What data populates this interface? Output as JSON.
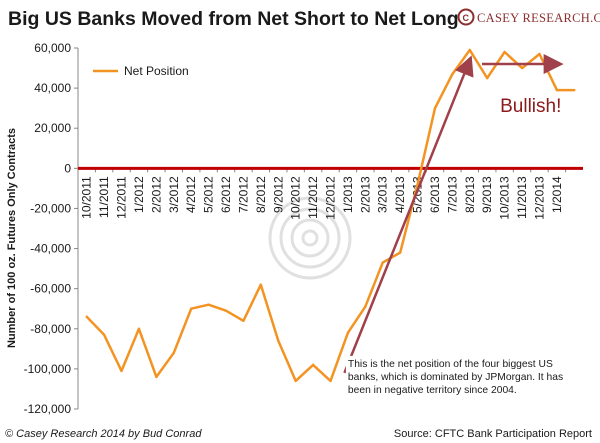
{
  "brand": {
    "name": "CASEY RESEARCH.COM",
    "logo_letter": "C"
  },
  "footer": {
    "credit": "© Casey Research 2014 by Bud Conrad",
    "source": "Source: CFTC Bank Participation Report"
  },
  "colors": {
    "series": "#F39322",
    "arrow": "#A0404A",
    "zero_line": "#C00000",
    "bullish_text": "#8B1A1A",
    "logo": "#8B2E2E"
  },
  "chart_data": {
    "type": "line",
    "title": "Big US Banks Moved from Net Short to Net Long",
    "ylabel": "Number of 100 oz. Futures Only Contracts",
    "xlabel": "",
    "ylim": [
      -120000,
      60000
    ],
    "yticks": [
      60000,
      40000,
      20000,
      0,
      -20000,
      -40000,
      -60000,
      -80000,
      -100000,
      -120000
    ],
    "ytick_labels": [
      "60,000",
      "40,000",
      "20,000",
      "0",
      "-20,000",
      "-40,000",
      "-60,000",
      "-80,000",
      "-100,000",
      "-120,000"
    ],
    "xtick_labels": [
      "10/2011",
      "11/2011",
      "12/2011",
      "1/2012",
      "2/2012",
      "3/2012",
      "4/2012",
      "5/2012",
      "6/2012",
      "7/2012",
      "8/2012",
      "9/2012",
      "10/2012",
      "11/2012",
      "12/2012",
      "1/2013",
      "2/2013",
      "3/2013",
      "4/2013",
      "5/2013",
      "6/2013",
      "7/2013",
      "8/2013",
      "9/2013",
      "10/2013",
      "11/2013",
      "12/2013",
      "1/2014"
    ],
    "x_range": [
      0,
      29
    ],
    "grid": false,
    "legend": {
      "position": "top-left",
      "entries": [
        "Net Position"
      ]
    },
    "series": [
      {
        "name": "Net Position",
        "x": [
          0.5,
          1.5,
          2.5,
          3.5,
          4.5,
          5.5,
          6.5,
          7.5,
          8.5,
          9.5,
          10.5,
          11.5,
          12.5,
          13.5,
          14.5,
          15.5,
          16.5,
          17.5,
          18.5,
          19.5,
          20.5,
          21.5,
          22.5,
          23.5,
          24.5,
          25.5,
          26.5,
          27.5,
          28.5
        ],
        "values": [
          -74000,
          -83000,
          -101000,
          -80000,
          -104000,
          -92000,
          -70000,
          -68000,
          -71000,
          -76000,
          -58000,
          -86000,
          -106000,
          -98000,
          -106000,
          -82000,
          -69000,
          -47000,
          -42000,
          -8000,
          30000,
          47000,
          59000,
          45000,
          58000,
          50000,
          57000,
          39000,
          39000
        ]
      }
    ],
    "annotations": [
      {
        "id": "trend",
        "type": "arrow",
        "from": [
          15.3,
          -102000
        ],
        "to": [
          22.5,
          54000
        ]
      },
      {
        "id": "flat",
        "type": "arrow",
        "from": [
          23.2,
          52000
        ],
        "to": [
          27.6,
          52000
        ]
      },
      {
        "id": "bullish",
        "type": "text",
        "text": "Bullish!",
        "at": [
          26,
          28000
        ]
      },
      {
        "id": "note",
        "type": "text",
        "text": "This is the net position of the four biggest US banks, which is dominated by JPMorgan. It has been in negative territory since 2004.",
        "lines": [
          "This is the net position of the four biggest US",
          "banks, which is dominated by JPMorgan. It has",
          "been in negative territory since 2004."
        ],
        "at": [
          15.5,
          -99000
        ]
      }
    ]
  }
}
